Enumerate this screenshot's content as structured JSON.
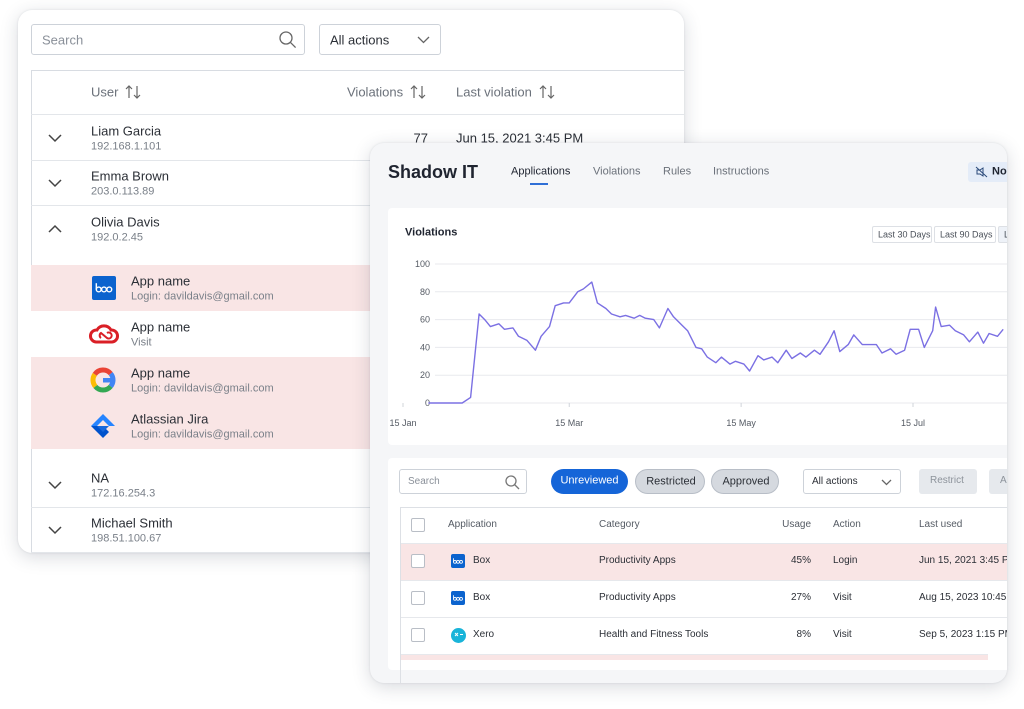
{
  "users_panel": {
    "search_placeholder": "Search",
    "filter": "All actions",
    "columns": [
      "User",
      "Violations",
      "Last violation"
    ],
    "users": [
      {
        "name": "Liam Garcia",
        "ip": "192.168.1.101",
        "violations": 77,
        "last_violation": "Jun 15, 2021 3:45 PM"
      },
      {
        "name": "Emma Brown",
        "ip": "203.0.113.89"
      },
      {
        "name": "Olivia Davis",
        "ip": "192.0.2.45",
        "apps": [
          {
            "name": "App name",
            "detail": "Login: davildavis@gmail.com"
          },
          {
            "name": "App name",
            "detail": "Visit"
          },
          {
            "name": "App name",
            "detail": "Login: davildavis@gmail.com"
          },
          {
            "name": "Atlassian Jira",
            "detail": "Login: davildavis@gmail.com"
          }
        ]
      },
      {
        "name": "NA",
        "ip": "172.16.254.3"
      },
      {
        "name": "Michael Smith",
        "ip": "198.51.100.67"
      }
    ]
  },
  "shadow_it": {
    "title": "Shadow IT",
    "tabs": [
      "Applications",
      "Violations",
      "Rules",
      "Instructions"
    ],
    "notify_button": "No",
    "ranges": [
      "Last 30 Days",
      "Last 90 Days",
      "L"
    ],
    "table": {
      "search_placeholder": "Search",
      "filters": [
        "Unreviewed",
        "Restricted",
        "Approved"
      ],
      "action_filter": "All actions",
      "buttons": [
        "Restrict",
        "A"
      ],
      "columns": [
        "Application",
        "Category",
        "Usage",
        "Action",
        "Last used"
      ],
      "rows": [
        [
          "Box",
          "Productivity Apps",
          "45%",
          "Login",
          "Jun 15, 2021 3:45 PM"
        ],
        [
          "Box",
          "Productivity Apps",
          "27%",
          "Visit",
          "Aug 15, 2023 10:45"
        ],
        [
          "Xero",
          "Health and Fitness Tools",
          "8%",
          "Visit",
          "Sep 5, 2023 1:15 PM"
        ]
      ]
    }
  },
  "chart_data": {
    "type": "line",
    "title": "Violations",
    "color": "#7b70e3",
    "grid": true,
    "x": [
      9,
      21,
      24,
      27,
      29,
      31,
      34,
      36,
      39,
      41,
      44,
      47,
      49,
      52,
      54,
      57,
      59,
      62,
      64,
      67,
      69,
      72,
      74,
      77,
      79,
      82,
      84,
      86,
      89,
      91,
      94,
      96,
      99,
      101,
      104,
      106,
      108,
      111,
      113,
      116,
      118,
      121,
      123,
      126,
      128,
      131,
      133,
      136,
      138,
      141,
      143,
      146,
      148,
      151,
      153,
      155,
      158,
      160,
      163,
      165,
      168,
      170,
      173,
      175,
      178,
      180,
      183,
      185,
      188,
      189,
      191,
      194,
      196,
      199,
      201,
      204,
      206,
      208,
      211,
      213
    ],
    "values": [
      0,
      0,
      4,
      64,
      60,
      55,
      57,
      53,
      54,
      48,
      45,
      38,
      48,
      55,
      70,
      72,
      72,
      80,
      82,
      87,
      72,
      68,
      64,
      62,
      63,
      61,
      63,
      61,
      60,
      54,
      68,
      62,
      56,
      52,
      40,
      39,
      33,
      29,
      33,
      28,
      30,
      28,
      23,
      34,
      31,
      33,
      29,
      38,
      32,
      36,
      33,
      38,
      35,
      44,
      52,
      37,
      42,
      49,
      42,
      42,
      42,
      36,
      39,
      35,
      38,
      53,
      53,
      40,
      52,
      69,
      55,
      56,
      52,
      49,
      44,
      51,
      43,
      50,
      48,
      53
    ],
    "xlim": [
      0,
      214
    ],
    "xticks": [
      {
        "value": 0,
        "label": "15 Jan"
      },
      {
        "value": 59,
        "label": "15 Mar"
      },
      {
        "value": 120,
        "label": "15 May"
      },
      {
        "value": 181,
        "label": "15 Jul"
      }
    ],
    "ylim": [
      0,
      100
    ],
    "yticks": [
      0,
      20,
      40,
      60,
      80,
      100
    ]
  }
}
